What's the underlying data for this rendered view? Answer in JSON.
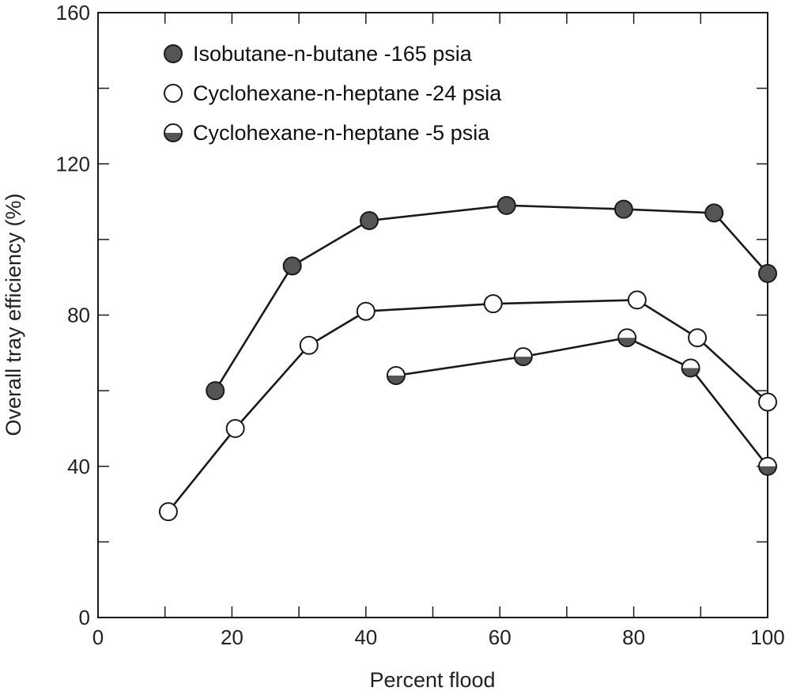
{
  "chart_data": {
    "type": "line",
    "xlabel": "Percent flood",
    "ylabel": "Overall tray efficiency (%)",
    "xlim": [
      0,
      100
    ],
    "ylim": [
      0,
      160
    ],
    "x_ticks": [
      0,
      20,
      40,
      60,
      80,
      100
    ],
    "y_ticks": [
      0,
      40,
      80,
      120,
      160
    ],
    "minor_x_ticks": [
      10,
      30,
      50,
      70,
      90
    ],
    "minor_y_ticks": [
      20,
      60,
      100,
      140
    ],
    "grid": false,
    "legend_position": "top-left",
    "series": [
      {
        "name": "Isobutane-n-butane -165 psia",
        "marker": "filled",
        "color": "#555555",
        "points": [
          {
            "x": 17.5,
            "y": 60
          },
          {
            "x": 29,
            "y": 93
          },
          {
            "x": 40.5,
            "y": 105
          },
          {
            "x": 61,
            "y": 109
          },
          {
            "x": 78.5,
            "y": 108
          },
          {
            "x": 92,
            "y": 107
          },
          {
            "x": 100,
            "y": 91
          }
        ]
      },
      {
        "name": "Cyclohexane-n-heptane -24 psia",
        "marker": "open",
        "color": "#ffffff",
        "points": [
          {
            "x": 10.5,
            "y": 28
          },
          {
            "x": 20.5,
            "y": 50
          },
          {
            "x": 31.5,
            "y": 72
          },
          {
            "x": 40,
            "y": 81
          },
          {
            "x": 59,
            "y": 83
          },
          {
            "x": 80.5,
            "y": 84
          },
          {
            "x": 89.5,
            "y": 74
          },
          {
            "x": 100,
            "y": 57
          }
        ]
      },
      {
        "name": "Cyclohexane-n-heptane -5 psia",
        "marker": "half",
        "color": "#555555",
        "points": [
          {
            "x": 44.5,
            "y": 64
          },
          {
            "x": 63.5,
            "y": 69
          },
          {
            "x": 79,
            "y": 74
          },
          {
            "x": 88.5,
            "y": 66
          },
          {
            "x": 100,
            "y": 40
          }
        ]
      }
    ]
  }
}
